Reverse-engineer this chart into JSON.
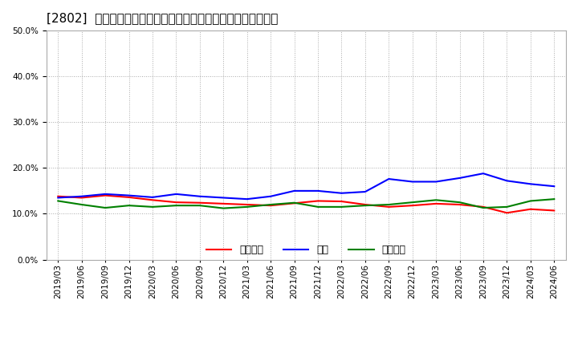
{
  "title": "[2802]  売上債権、在庫、買入債務の総資産に対する比率の推移",
  "dates": [
    "2019/03",
    "2019/06",
    "2019/09",
    "2019/12",
    "2020/03",
    "2020/06",
    "2020/09",
    "2020/12",
    "2021/03",
    "2021/06",
    "2021/09",
    "2021/12",
    "2022/03",
    "2022/06",
    "2022/09",
    "2022/12",
    "2023/03",
    "2023/06",
    "2023/09",
    "2023/12",
    "2024/03",
    "2024/06"
  ],
  "urikake": [
    0.138,
    0.135,
    0.14,
    0.136,
    0.13,
    0.125,
    0.124,
    0.122,
    0.12,
    0.118,
    0.123,
    0.128,
    0.127,
    0.12,
    0.115,
    0.118,
    0.122,
    0.12,
    0.115,
    0.102,
    0.11,
    0.107
  ],
  "zaiko": [
    0.135,
    0.138,
    0.143,
    0.14,
    0.136,
    0.143,
    0.138,
    0.135,
    0.132,
    0.138,
    0.15,
    0.15,
    0.145,
    0.148,
    0.176,
    0.17,
    0.17,
    0.178,
    0.188,
    0.172,
    0.165,
    0.16
  ],
  "kaiire": [
    0.128,
    0.12,
    0.113,
    0.118,
    0.115,
    0.118,
    0.118,
    0.112,
    0.115,
    0.12,
    0.124,
    0.115,
    0.115,
    0.118,
    0.12,
    0.125,
    0.13,
    0.125,
    0.113,
    0.115,
    0.128,
    0.132
  ],
  "urikake_color": "#ff0000",
  "zaiko_color": "#0000ff",
  "kaiire_color": "#008000",
  "ylim": [
    0.0,
    0.5
  ],
  "yticks": [
    0.0,
    0.1,
    0.2,
    0.3,
    0.4,
    0.5
  ],
  "legend_labels": [
    "売上債権",
    "在庫",
    "買入債務"
  ],
  "bg_color": "#ffffff",
  "grid_color": "#aaaaaa",
  "title_fontsize": 11,
  "tick_fontsize": 7.5,
  "legend_fontsize": 9,
  "line_width": 1.5
}
